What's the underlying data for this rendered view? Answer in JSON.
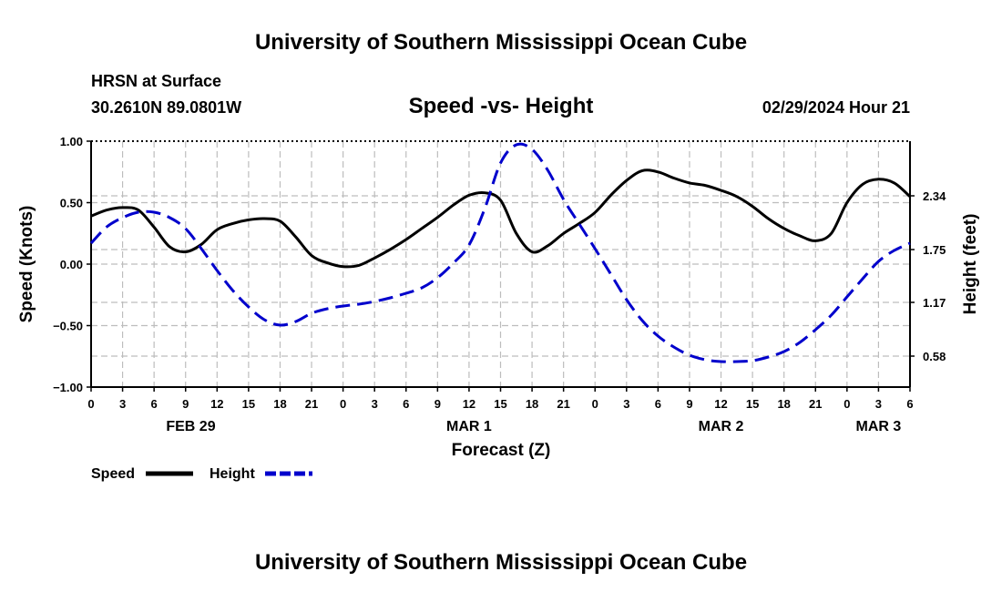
{
  "page": {
    "title_top": "University of Southern Mississippi Ocean Cube",
    "title_bottom": "University of Southern Mississippi Ocean Cube",
    "station": "HRSN at Surface",
    "coords": "30.2610N  89.0801W",
    "datetime": "02/29/2024 Hour 21"
  },
  "chart_data": {
    "type": "line",
    "title": "Speed -vs- Height",
    "xlabel": "Forecast (Z)",
    "ylabel_left": "Speed (Knots)",
    "ylabel_right": "Height (feet)",
    "x_range_hours": [
      0,
      78
    ],
    "x_ticks": [
      {
        "h": 0,
        "label": "0"
      },
      {
        "h": 3,
        "label": "3"
      },
      {
        "h": 6,
        "label": "6"
      },
      {
        "h": 9,
        "label": "9"
      },
      {
        "h": 12,
        "label": "12"
      },
      {
        "h": 15,
        "label": "15"
      },
      {
        "h": 18,
        "label": "18"
      },
      {
        "h": 21,
        "label": "21"
      },
      {
        "h": 24,
        "label": "0"
      },
      {
        "h": 27,
        "label": "3"
      },
      {
        "h": 30,
        "label": "6"
      },
      {
        "h": 33,
        "label": "9"
      },
      {
        "h": 36,
        "label": "12"
      },
      {
        "h": 39,
        "label": "15"
      },
      {
        "h": 42,
        "label": "18"
      },
      {
        "h": 45,
        "label": "21"
      },
      {
        "h": 48,
        "label": "0"
      },
      {
        "h": 51,
        "label": "3"
      },
      {
        "h": 54,
        "label": "6"
      },
      {
        "h": 57,
        "label": "9"
      },
      {
        "h": 60,
        "label": "12"
      },
      {
        "h": 63,
        "label": "15"
      },
      {
        "h": 66,
        "label": "18"
      },
      {
        "h": 69,
        "label": "21"
      },
      {
        "h": 72,
        "label": "0"
      },
      {
        "h": 75,
        "label": "3"
      },
      {
        "h": 78,
        "label": "6"
      }
    ],
    "date_labels": [
      {
        "h": 9.5,
        "label": "FEB 29"
      },
      {
        "h": 36,
        "label": "MAR 1"
      },
      {
        "h": 60,
        "label": "MAR 2"
      },
      {
        "h": 75,
        "label": "MAR 3"
      }
    ],
    "y_left": {
      "range": [
        -1.0,
        1.0
      ],
      "ticks": [
        -1.0,
        -0.5,
        0.0,
        0.5,
        1.0
      ],
      "tick_labels": [
        "−1.00",
        "−0.50",
        "0.00",
        "0.50",
        "1.00"
      ]
    },
    "y_right": {
      "range": [
        0.24,
        2.94
      ],
      "ticks": [
        0.58,
        1.17,
        1.75,
        2.34
      ],
      "tick_labels": [
        "0.58",
        "1.17",
        "1.75",
        "2.34"
      ]
    },
    "legend": [
      {
        "name": "Speed",
        "color": "#000000",
        "style": "solid"
      },
      {
        "name": "Height",
        "color": "#0000cc",
        "style": "dashed"
      }
    ],
    "series": [
      {
        "name": "Speed",
        "axis": "left",
        "color": "#000000",
        "x": [
          0,
          1.5,
          3,
          4.5,
          6,
          7.5,
          9,
          10.5,
          12,
          13.5,
          15,
          16.5,
          18,
          19.5,
          21,
          22.5,
          24,
          25.5,
          27,
          28.5,
          30,
          31.5,
          33,
          34.5,
          36,
          37.5,
          39,
          40.5,
          42,
          43.5,
          45,
          46.5,
          48,
          49.5,
          51,
          52.5,
          54,
          55.5,
          57,
          58.5,
          60,
          61.5,
          63,
          64.5,
          66,
          67.5,
          69,
          70.5,
          72,
          73.5,
          75,
          76.5,
          78
        ],
        "values": [
          0.39,
          0.44,
          0.46,
          0.44,
          0.3,
          0.14,
          0.1,
          0.16,
          0.28,
          0.33,
          0.36,
          0.37,
          0.35,
          0.22,
          0.07,
          0.01,
          -0.02,
          -0.01,
          0.05,
          0.12,
          0.2,
          0.29,
          0.38,
          0.48,
          0.56,
          0.58,
          0.52,
          0.25,
          0.1,
          0.15,
          0.25,
          0.33,
          0.42,
          0.56,
          0.68,
          0.76,
          0.75,
          0.7,
          0.66,
          0.64,
          0.6,
          0.55,
          0.47,
          0.37,
          0.29,
          0.23,
          0.19,
          0.25,
          0.5,
          0.65,
          0.69,
          0.66,
          0.55
        ]
      },
      {
        "name": "Height",
        "axis": "right",
        "color": "#0000cc",
        "x": [
          0,
          1.5,
          3,
          4.5,
          6,
          7.5,
          9,
          10.5,
          12,
          13.5,
          15,
          16.5,
          18,
          19.5,
          21,
          22.5,
          24,
          25.5,
          27,
          28.5,
          30,
          31.5,
          33,
          34.5,
          36,
          37.5,
          39,
          40.5,
          42,
          43.5,
          45,
          46.5,
          48,
          49.5,
          51,
          52.5,
          54,
          55.5,
          57,
          58.5,
          60,
          61.5,
          63,
          64.5,
          66,
          67.5,
          69,
          70.5,
          72,
          73.5,
          75,
          76.5,
          78
        ],
        "values": [
          1.82,
          2.0,
          2.1,
          2.16,
          2.16,
          2.1,
          1.98,
          1.76,
          1.52,
          1.3,
          1.12,
          0.98,
          0.92,
          0.96,
          1.05,
          1.1,
          1.13,
          1.15,
          1.18,
          1.22,
          1.27,
          1.33,
          1.44,
          1.6,
          1.8,
          2.2,
          2.7,
          2.9,
          2.85,
          2.62,
          2.3,
          2.03,
          1.76,
          1.48,
          1.2,
          0.97,
          0.8,
          0.68,
          0.59,
          0.54,
          0.52,
          0.52,
          0.53,
          0.57,
          0.63,
          0.73,
          0.87,
          1.03,
          1.23,
          1.43,
          1.62,
          1.74,
          1.82
        ]
      }
    ]
  }
}
